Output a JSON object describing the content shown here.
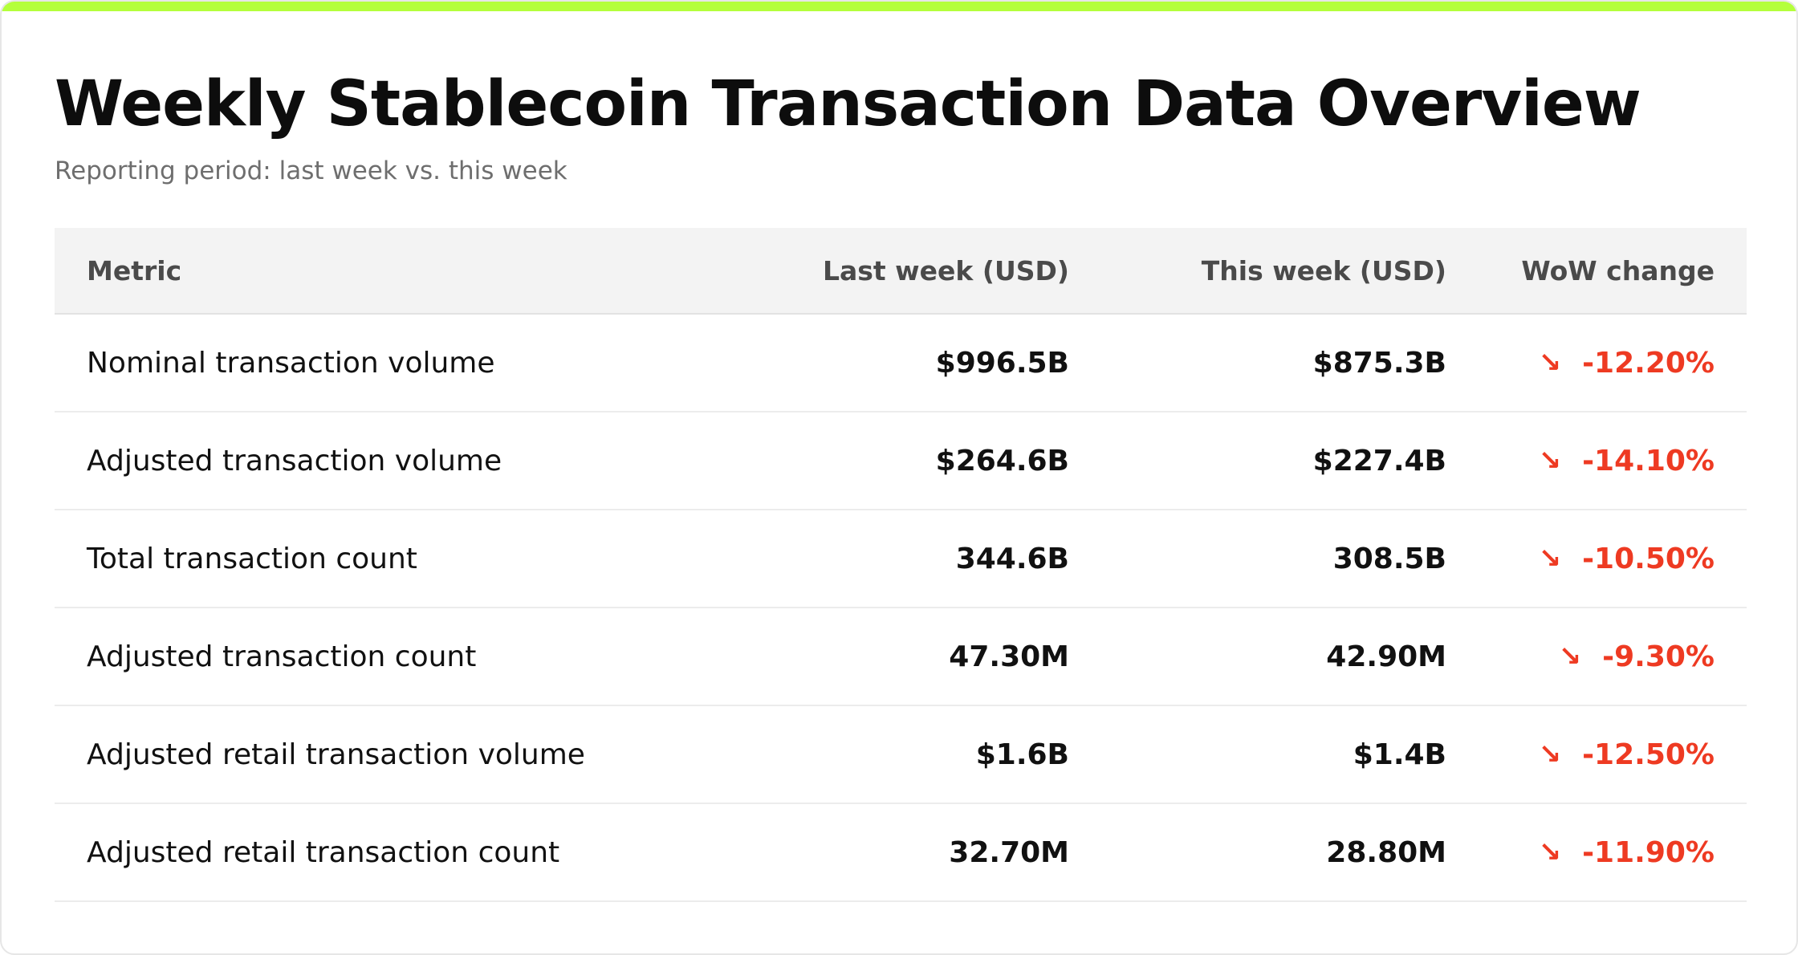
{
  "header": {
    "title": "Weekly Stablecoin Transaction Data Overview",
    "subtitle": "Reporting period: last week vs. this week"
  },
  "colors": {
    "accent": "#b4ff3c",
    "negative": "#ee3a22"
  },
  "table": {
    "columns": [
      "Metric",
      "Last week (USD)",
      "This week (USD)",
      "WoW change"
    ],
    "rows": [
      {
        "metric": "Nominal transaction volume",
        "last_week": "$996.5B",
        "this_week": "$875.3B",
        "direction_icon": "arrow-down-right-icon",
        "arrow": "↘",
        "change": "-12.20%"
      },
      {
        "metric": "Adjusted transaction volume",
        "last_week": "$264.6B",
        "this_week": "$227.4B",
        "direction_icon": "arrow-down-right-icon",
        "arrow": "↘",
        "change": "-14.10%"
      },
      {
        "metric": "Total transaction count",
        "last_week": "344.6B",
        "this_week": "308.5B",
        "direction_icon": "arrow-down-right-icon",
        "arrow": "↘",
        "change": "-10.50%"
      },
      {
        "metric": "Adjusted transaction count",
        "last_week": "47.30M",
        "this_week": "42.90M",
        "direction_icon": "arrow-down-right-icon",
        "arrow": "↘",
        "change": "-9.30%"
      },
      {
        "metric": "Adjusted retail transaction volume",
        "last_week": "$1.6B",
        "this_week": "$1.4B",
        "direction_icon": "arrow-down-right-icon",
        "arrow": "↘",
        "change": "-12.50%"
      },
      {
        "metric": "Adjusted retail transaction count",
        "last_week": "32.70M",
        "this_week": "28.80M",
        "direction_icon": "arrow-down-right-icon",
        "arrow": "↘",
        "change": "-11.90%"
      }
    ]
  }
}
